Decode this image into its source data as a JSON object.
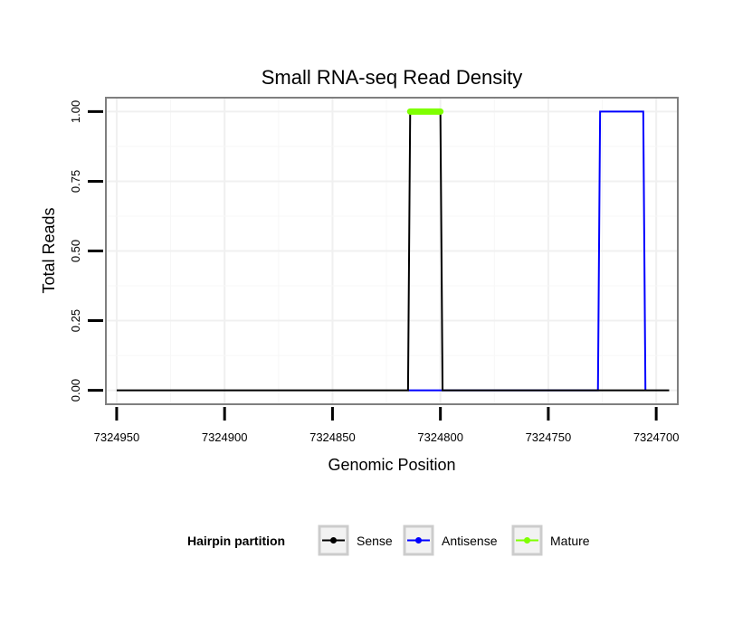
{
  "chart_data": {
    "type": "line",
    "title": "Small RNA-seq Read Density",
    "xlabel": "Genomic Position",
    "ylabel": "Total Reads",
    "xlim": [
      7324955,
      7324690
    ],
    "x_reversed": true,
    "xticks": [
      7324950,
      7324900,
      7324850,
      7324800,
      7324750,
      7324700
    ],
    "xtick_labels": [
      "7324950",
      "7324900",
      "7324850",
      "7324800",
      "7324750",
      "7324700"
    ],
    "ylim": [
      -0.05,
      1.05
    ],
    "yticks": [
      0.0,
      0.25,
      0.5,
      0.75,
      1.0
    ],
    "ytick_labels": [
      "0.00",
      "0.25",
      "0.50",
      "0.75",
      "1.00"
    ],
    "grid": true,
    "legend_position": "bottom",
    "legend_title": "Hairpin partition",
    "series": [
      {
        "name": "Sense",
        "color": "#000000",
        "x": [
          7324950,
          7324815,
          7324814,
          7324800,
          7324799,
          7324694
        ],
        "y": [
          0,
          0,
          1,
          1,
          0,
          0
        ]
      },
      {
        "name": "Antisense",
        "color": "#0000ff",
        "x": [
          7324815,
          7324799,
          7324727,
          7324726,
          7324706,
          7324705
        ],
        "y": [
          0,
          0,
          0,
          1,
          1,
          0
        ]
      },
      {
        "name": "Mature",
        "color": "#7fff00",
        "x": [
          7324814,
          7324800
        ],
        "y": [
          1,
          1
        ]
      }
    ]
  }
}
